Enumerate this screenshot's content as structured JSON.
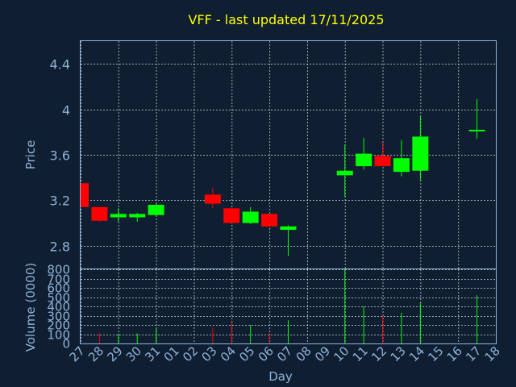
{
  "chart_data": {
    "type": "candlestick",
    "title": "VFF - last updated 17/11/2025",
    "xlabel": "Day",
    "price": {
      "ylabel": "Price",
      "ylim": [
        2.6,
        4.6
      ],
      "yticks": [
        "2.8",
        "3.2",
        "3.6",
        "4",
        "4.4"
      ],
      "grid": true
    },
    "volume": {
      "ylabel": "Volume (0000)",
      "ylim": [
        0,
        800
      ],
      "yticks": [
        "0",
        "100",
        "200",
        "300",
        "400",
        "500",
        "600",
        "700",
        "800"
      ],
      "grid": true
    },
    "x_labels": [
      "27",
      "28",
      "29",
      "30",
      "31",
      "01",
      "02",
      "03",
      "04",
      "05",
      "06",
      "07",
      "08",
      "09",
      "10",
      "11",
      "12",
      "13",
      "14",
      "15",
      "16",
      "17",
      "18"
    ],
    "candles": [
      {
        "day": "27",
        "open": 3.35,
        "high": 3.35,
        "low": 3.14,
        "close": 3.14,
        "volume": 0
      },
      {
        "day": "28",
        "open": 3.14,
        "high": 3.14,
        "low": 3.01,
        "close": 3.02,
        "volume": 110
      },
      {
        "day": "29",
        "open": 3.05,
        "high": 3.13,
        "low": 3.01,
        "close": 3.08,
        "volume": 100
      },
      {
        "day": "30",
        "open": 3.05,
        "high": 3.09,
        "low": 3.01,
        "close": 3.08,
        "volume": 110
      },
      {
        "day": "31",
        "open": 3.07,
        "high": 3.17,
        "low": 3.06,
        "close": 3.16,
        "volume": 160
      },
      {
        "day": "03",
        "open": 3.25,
        "high": 3.31,
        "low": 3.13,
        "close": 3.17,
        "volume": 170
      },
      {
        "day": "04",
        "open": 3.13,
        "high": 3.14,
        "low": 2.99,
        "close": 3.0,
        "volume": 230
      },
      {
        "day": "05",
        "open": 3.0,
        "high": 3.14,
        "low": 2.99,
        "close": 3.1,
        "volume": 200
      },
      {
        "day": "06",
        "open": 3.08,
        "high": 3.08,
        "low": 2.96,
        "close": 2.97,
        "volume": 110
      },
      {
        "day": "07",
        "open": 2.94,
        "high": 2.98,
        "low": 2.71,
        "close": 2.97,
        "volume": 250
      },
      {
        "day": "10",
        "open": 3.42,
        "high": 3.69,
        "low": 3.23,
        "close": 3.46,
        "volume": 800
      },
      {
        "day": "11",
        "open": 3.5,
        "high": 3.75,
        "low": 3.47,
        "close": 3.61,
        "volume": 400
      },
      {
        "day": "12",
        "open": 3.59,
        "high": 3.71,
        "low": 3.5,
        "close": 3.5,
        "volume": 300
      },
      {
        "day": "13",
        "open": 3.45,
        "high": 3.73,
        "low": 3.41,
        "close": 3.57,
        "volume": 330
      },
      {
        "day": "14",
        "open": 3.46,
        "high": 3.94,
        "low": 3.37,
        "close": 3.76,
        "volume": 440
      },
      {
        "day": "17",
        "open": 3.82,
        "high": 4.09,
        "low": 3.74,
        "close": 3.82,
        "volume": 520
      }
    ],
    "colors": {
      "up": "#00ff00",
      "down": "#ff0000",
      "background": "#0f1e30",
      "axis": "#8fb3d9",
      "title": "#ffff00"
    }
  }
}
